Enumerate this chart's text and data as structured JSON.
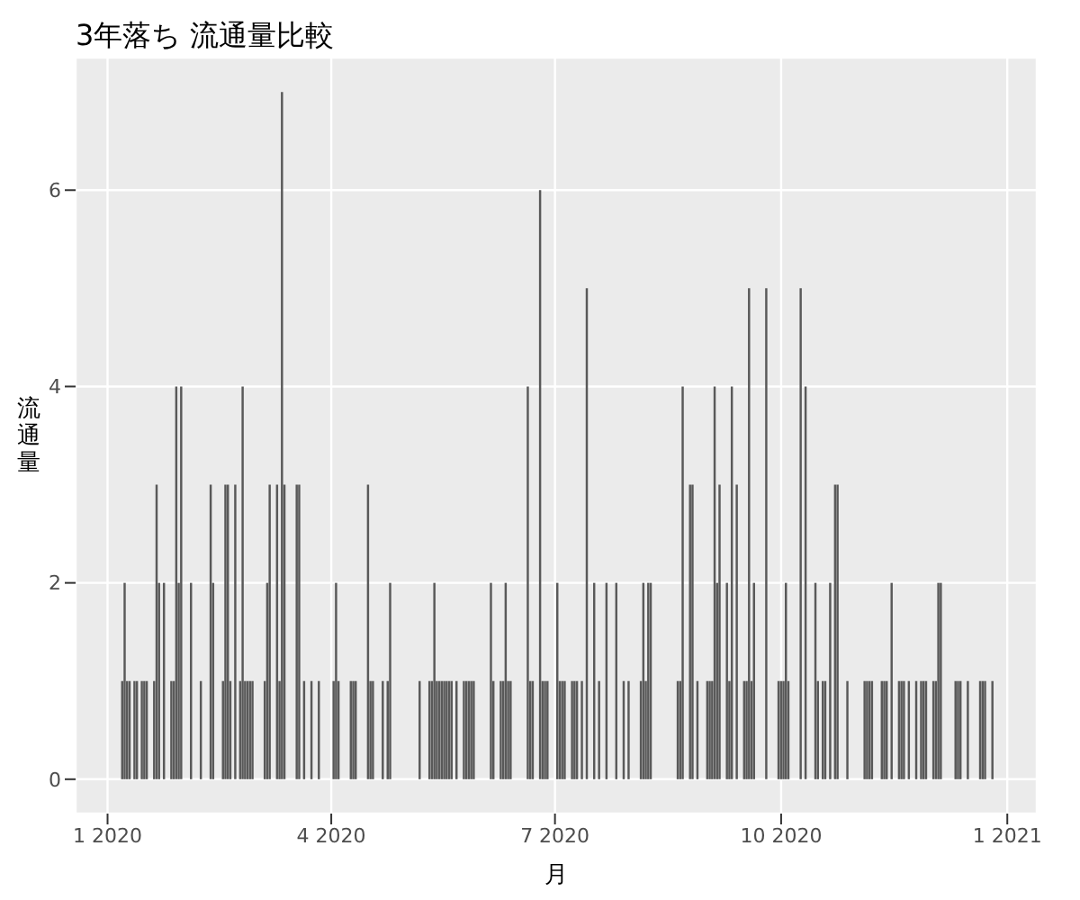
{
  "chart_data": {
    "type": "bar",
    "title": "3年落ち 流通量比較",
    "xlabel": "月",
    "ylabel": "流通量",
    "color": "#595959",
    "grid": true,
    "xlim": [
      "2019-12-19",
      "2021-01-13"
    ],
    "xticks": [
      {
        "value": "2020-01-01",
        "label": "1 2020"
      },
      {
        "value": "2020-04-01",
        "label": "4 2020"
      },
      {
        "value": "2020-07-01",
        "label": "7 2020"
      },
      {
        "value": "2020-10-01",
        "label": "10 2020"
      },
      {
        "value": "2021-01-01",
        "label": "1 2021"
      }
    ],
    "ylim": [
      -0.35,
      7.35
    ],
    "yticks": [
      0,
      2,
      4,
      6
    ],
    "x": [
      "2020-01-07",
      "2020-01-08",
      "2020-01-09",
      "2020-01-10",
      "2020-01-12",
      "2020-01-13",
      "2020-01-15",
      "2020-01-16",
      "2020-01-17",
      "2020-01-20",
      "2020-01-21",
      "2020-01-22",
      "2020-01-24",
      "2020-01-27",
      "2020-01-28",
      "2020-01-29",
      "2020-01-30",
      "2020-01-31",
      "2020-02-04",
      "2020-02-08",
      "2020-02-12",
      "2020-02-13",
      "2020-02-17",
      "2020-02-18",
      "2020-02-19",
      "2020-02-20",
      "2020-02-22",
      "2020-02-24",
      "2020-02-25",
      "2020-02-26",
      "2020-02-27",
      "2020-02-28",
      "2020-02-29",
      "2020-03-05",
      "2020-03-06",
      "2020-03-07",
      "2020-03-10",
      "2020-03-11",
      "2020-03-12",
      "2020-03-13",
      "2020-03-18",
      "2020-03-19",
      "2020-03-21",
      "2020-03-24",
      "2020-03-27",
      "2020-04-02",
      "2020-04-03",
      "2020-04-04",
      "2020-04-09",
      "2020-04-10",
      "2020-04-11",
      "2020-04-16",
      "2020-04-17",
      "2020-04-18",
      "2020-04-22",
      "2020-04-24",
      "2020-04-25",
      "2020-05-07",
      "2020-05-11",
      "2020-05-12",
      "2020-05-13",
      "2020-05-14",
      "2020-05-15",
      "2020-05-16",
      "2020-05-17",
      "2020-05-18",
      "2020-05-19",
      "2020-05-20",
      "2020-05-22",
      "2020-05-25",
      "2020-05-26",
      "2020-05-27",
      "2020-05-28",
      "2020-05-29",
      "2020-06-05",
      "2020-06-06",
      "2020-06-09",
      "2020-06-10",
      "2020-06-11",
      "2020-06-12",
      "2020-06-13",
      "2020-06-20",
      "2020-06-21",
      "2020-06-22",
      "2020-06-25",
      "2020-06-26",
      "2020-06-27",
      "2020-06-28",
      "2020-07-02",
      "2020-07-03",
      "2020-07-04",
      "2020-07-05",
      "2020-07-08",
      "2020-07-09",
      "2020-07-10",
      "2020-07-12",
      "2020-07-14",
      "2020-07-17",
      "2020-07-19",
      "2020-07-22",
      "2020-07-26",
      "2020-07-29",
      "2020-07-31",
      "2020-08-05",
      "2020-08-06",
      "2020-08-07",
      "2020-08-08",
      "2020-08-09",
      "2020-08-20",
      "2020-08-21",
      "2020-08-22",
      "2020-08-25",
      "2020-08-26",
      "2020-08-28",
      "2020-09-01",
      "2020-09-02",
      "2020-09-03",
      "2020-09-04",
      "2020-09-05",
      "2020-09-06",
      "2020-09-09",
      "2020-09-10",
      "2020-09-11",
      "2020-09-13",
      "2020-09-16",
      "2020-09-17",
      "2020-09-18",
      "2020-09-19",
      "2020-09-20",
      "2020-09-25",
      "2020-09-30",
      "2020-10-01",
      "2020-10-02",
      "2020-10-03",
      "2020-10-04",
      "2020-10-09",
      "2020-10-11",
      "2020-10-15",
      "2020-10-16",
      "2020-10-18",
      "2020-10-19",
      "2020-10-21",
      "2020-10-23",
      "2020-10-24",
      "2020-10-28",
      "2020-11-04",
      "2020-11-05",
      "2020-11-06",
      "2020-11-07",
      "2020-11-11",
      "2020-11-12",
      "2020-11-13",
      "2020-11-15",
      "2020-11-18",
      "2020-11-19",
      "2020-11-20",
      "2020-11-22",
      "2020-11-25",
      "2020-11-27",
      "2020-11-28",
      "2020-11-29",
      "2020-12-02",
      "2020-12-03",
      "2020-12-04",
      "2020-12-05",
      "2020-12-11",
      "2020-12-12",
      "2020-12-13",
      "2020-12-16",
      "2020-12-21",
      "2020-12-22",
      "2020-12-23",
      "2020-12-26"
    ],
    "values": [
      1,
      2,
      1,
      1,
      1,
      1,
      1,
      1,
      1,
      1,
      3,
      2,
      2,
      1,
      1,
      4,
      2,
      4,
      2,
      1,
      3,
      2,
      1,
      3,
      3,
      1,
      3,
      1,
      4,
      1,
      1,
      1,
      1,
      1,
      2,
      3,
      3,
      1,
      7,
      3,
      3,
      3,
      1,
      1,
      1,
      1,
      2,
      1,
      1,
      1,
      1,
      3,
      1,
      1,
      1,
      1,
      2,
      1,
      1,
      1,
      2,
      1,
      1,
      1,
      1,
      1,
      1,
      1,
      1,
      1,
      1,
      1,
      1,
      1,
      2,
      1,
      1,
      1,
      2,
      1,
      1,
      4,
      1,
      1,
      6,
      1,
      1,
      1,
      2,
      1,
      1,
      1,
      1,
      1,
      1,
      1,
      5,
      2,
      1,
      2,
      2,
      1,
      1,
      1,
      2,
      1,
      2,
      2,
      1,
      1,
      4,
      3,
      3,
      1,
      1,
      1,
      1,
      4,
      2,
      3,
      2,
      1,
      4,
      3,
      1,
      1,
      5,
      1,
      2,
      5,
      1,
      1,
      1,
      2,
      1,
      5,
      4,
      2,
      1,
      1,
      1,
      2,
      3,
      3,
      1,
      1,
      1,
      1,
      1,
      1,
      1,
      1,
      2,
      1,
      1,
      1,
      1,
      1,
      1,
      1,
      1,
      1,
      1,
      2,
      2,
      1,
      1,
      1,
      1,
      1,
      1,
      1,
      1
    ]
  }
}
